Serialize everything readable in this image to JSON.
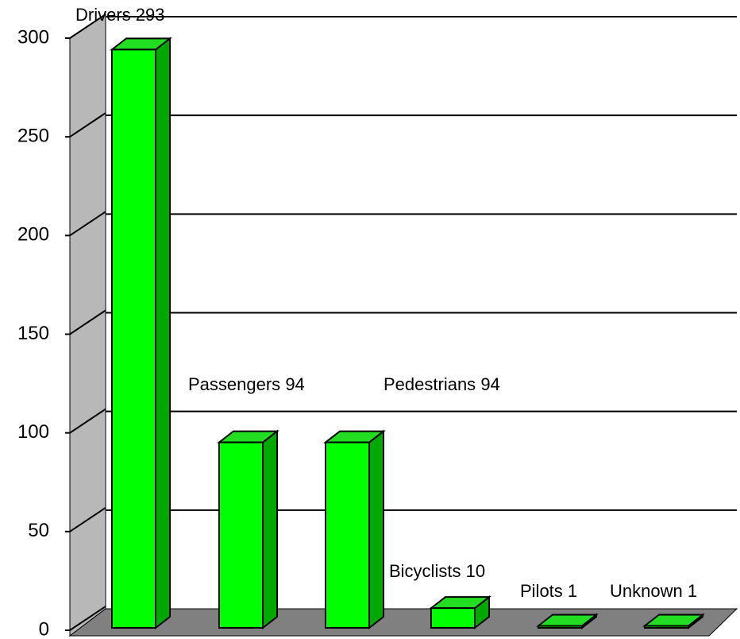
{
  "chart_data": {
    "type": "bar3d",
    "categories": [
      "Drivers",
      "Passengers",
      "Pedestrians",
      "Bicyclists",
      "Pilots",
      "Unknown"
    ],
    "values": [
      293,
      94,
      94,
      10,
      1,
      1
    ],
    "color": "#00ff00",
    "ylim": [
      0,
      300
    ],
    "yticks": [
      0,
      50,
      100,
      150,
      200,
      250,
      300
    ],
    "grid": true
  }
}
